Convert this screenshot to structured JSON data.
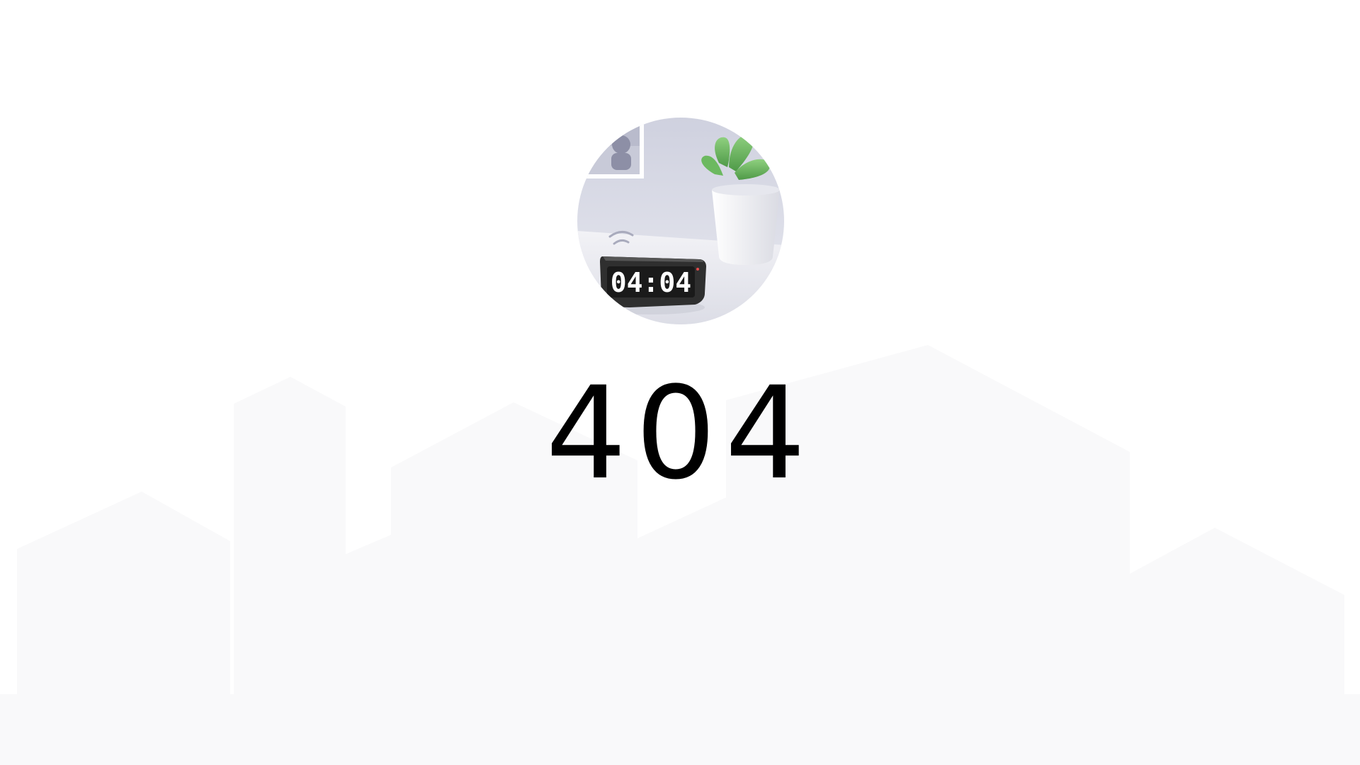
{
  "error": {
    "code": "404"
  },
  "illustration": {
    "clock_time": "04:04",
    "icons": [
      "alarm-clock-icon",
      "plant-pot-icon",
      "picture-frame-icon",
      "sound-wave-icon"
    ]
  },
  "colors": {
    "background": "#ffffff",
    "skyline": "#f9f9fa",
    "text": "#000000",
    "plant_green": "#5fae55",
    "clock_body": "#2f2f2f",
    "wall_tint": "#d9dbe6"
  }
}
